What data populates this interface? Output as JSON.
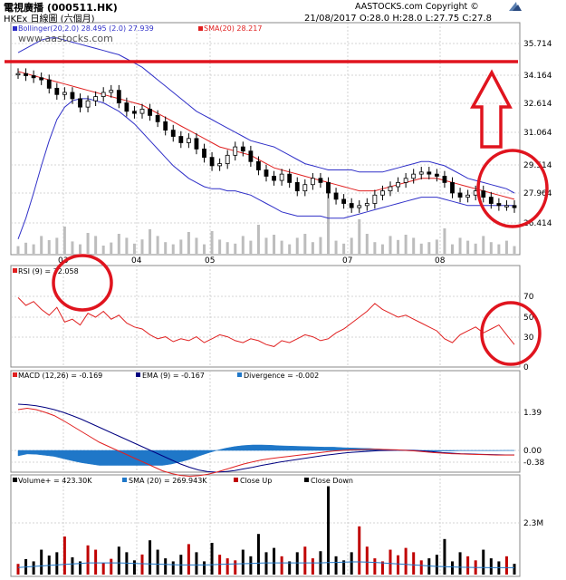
{
  "header": {
    "title": "電視廣播 (000511.HK)",
    "subtitle": "HKEx 日線圖 (六個月)",
    "copyright": "AASTOCKS.com Copyright ©",
    "quote": "21/08/2017  O:28.0  H:28.0  L:27.75  C:27.8",
    "watermark": "www.aastocks.com"
  },
  "colors": {
    "price_candle_up": "#ffffff",
    "price_candle_down": "#000000",
    "bollinger": "#3030c8",
    "sma": "#e02020",
    "rsi": "#e02020",
    "macd": "#e02020",
    "ema": "#000080",
    "divergence": "#1f77c8",
    "volume_up": "#c00000",
    "volume_down": "#000000",
    "volume_sma": "#1f77c8",
    "grid": "#c8c8c8",
    "annotation": "#e0141e"
  },
  "chart_data": [
    {
      "type": "line",
      "panel": "price",
      "legend": [
        "Bollinger(20,2.0) 28.495 (2.0) 27.939",
        "SMA(20) 28.217"
      ],
      "x_tick_labels": [
        "03",
        "04",
        "05",
        "07",
        "08"
      ],
      "y_tick_labels": [
        "35.714",
        "34.164",
        "32.614",
        "31.064",
        "29.514",
        "27.964",
        "26.414"
      ],
      "ylim": [
        25.6,
        36.5
      ],
      "series": [
        {
          "name": "Close",
          "values": [
            34.2,
            34.1,
            34.0,
            33.9,
            33.5,
            33.2,
            33.3,
            33.0,
            32.6,
            32.9,
            33.1,
            33.3,
            33.4,
            32.8,
            32.4,
            32.3,
            32.5,
            32.2,
            31.9,
            31.5,
            31.2,
            30.9,
            31.1,
            30.6,
            30.2,
            29.8,
            29.9,
            30.3,
            30.7,
            30.5,
            30.0,
            29.6,
            29.3,
            29.1,
            29.4,
            29.0,
            28.6,
            28.9,
            29.2,
            29.0,
            28.5,
            28.2,
            28.0,
            27.8,
            27.9,
            28.0,
            28.4,
            28.6,
            28.8,
            29.0,
            29.2,
            29.4,
            29.5,
            29.4,
            29.3,
            29.0,
            28.5,
            28.3,
            28.4,
            28.6,
            28.3,
            28.0,
            27.9,
            27.9,
            27.8
          ]
        },
        {
          "name": "SMA(20)",
          "values": [
            34.3,
            34.2,
            34.1,
            34.0,
            33.9,
            33.8,
            33.7,
            33.6,
            33.5,
            33.4,
            33.3,
            33.2,
            33.1,
            33.0,
            32.9,
            32.8,
            32.7,
            32.5,
            32.3,
            32.1,
            31.9,
            31.7,
            31.5,
            31.3,
            31.1,
            30.9,
            30.7,
            30.6,
            30.5,
            30.4,
            30.3,
            30.1,
            29.9,
            29.7,
            29.6,
            29.5,
            29.4,
            29.3,
            29.2,
            29.1,
            29.0,
            28.9,
            28.8,
            28.7,
            28.6,
            28.6,
            28.6,
            28.7,
            28.8,
            28.9,
            29.0,
            29.1,
            29.2,
            29.2,
            29.2,
            29.1,
            29.0,
            28.9,
            28.8,
            28.7,
            28.6,
            28.5,
            28.4,
            28.3,
            28.2
          ]
        },
        {
          "name": "Bollinger Upper",
          "values": [
            35.2,
            35.4,
            35.6,
            35.8,
            35.9,
            35.9,
            35.8,
            35.7,
            35.6,
            35.5,
            35.4,
            35.3,
            35.2,
            35.1,
            34.9,
            34.7,
            34.5,
            34.2,
            33.9,
            33.6,
            33.3,
            33.0,
            32.7,
            32.4,
            32.2,
            32.0,
            31.8,
            31.6,
            31.4,
            31.2,
            31.0,
            30.9,
            30.8,
            30.7,
            30.5,
            30.3,
            30.1,
            29.9,
            29.8,
            29.7,
            29.6,
            29.6,
            29.6,
            29.6,
            29.5,
            29.5,
            29.5,
            29.5,
            29.6,
            29.7,
            29.8,
            29.9,
            30.0,
            30.0,
            29.9,
            29.8,
            29.6,
            29.4,
            29.2,
            29.1,
            29.0,
            28.9,
            28.8,
            28.7,
            28.5
          ]
        },
        {
          "name": "Bollinger Lower",
          "values": [
            26.3,
            27.3,
            28.5,
            29.8,
            31.0,
            32.0,
            32.6,
            32.9,
            33.0,
            33.0,
            32.9,
            32.8,
            32.6,
            32.4,
            32.1,
            31.8,
            31.4,
            31.0,
            30.6,
            30.2,
            29.8,
            29.5,
            29.2,
            29.0,
            28.8,
            28.7,
            28.7,
            28.6,
            28.6,
            28.5,
            28.4,
            28.2,
            28.0,
            27.8,
            27.6,
            27.5,
            27.4,
            27.4,
            27.4,
            27.4,
            27.3,
            27.3,
            27.3,
            27.4,
            27.5,
            27.6,
            27.7,
            27.8,
            27.9,
            28.0,
            28.1,
            28.2,
            28.3,
            28.3,
            28.3,
            28.2,
            28.1,
            28.0,
            27.9,
            27.9,
            27.9,
            27.9,
            27.9,
            27.9,
            27.9
          ]
        }
      ]
    },
    {
      "type": "line",
      "panel": "rsi",
      "legend": [
        "RSI (9) = 32.058"
      ],
      "y_tick_labels": [
        "70",
        "50",
        "30",
        "0"
      ],
      "ylim": [
        0,
        100
      ],
      "series": [
        {
          "name": "RSI (9)",
          "values": [
            80,
            72,
            76,
            68,
            62,
            70,
            55,
            58,
            52,
            64,
            60,
            66,
            58,
            62,
            54,
            50,
            48,
            42,
            38,
            40,
            35,
            38,
            36,
            40,
            34,
            38,
            42,
            40,
            36,
            34,
            38,
            36,
            32,
            30,
            36,
            34,
            38,
            42,
            40,
            36,
            38,
            44,
            48,
            54,
            60,
            66,
            74,
            68,
            64,
            60,
            62,
            58,
            54,
            50,
            46,
            38,
            34,
            42,
            46,
            50,
            44,
            48,
            52,
            42,
            32
          ]
        }
      ]
    },
    {
      "type": "line",
      "panel": "macd",
      "legend": [
        "MACD (12,26) = -0.169",
        "EMA (9) = -0.167",
        "Divergence = -0.002"
      ],
      "y_tick_labels": [
        "1.39",
        "0.00",
        "-0.38"
      ],
      "ylim": [
        -1.5,
        2.5
      ],
      "series": [
        {
          "name": "MACD (12,26)",
          "values": [
            1.5,
            1.55,
            1.5,
            1.4,
            1.28,
            1.1,
            0.9,
            0.7,
            0.5,
            0.3,
            0.15,
            0.0,
            -0.15,
            -0.3,
            -0.45,
            -0.6,
            -0.75,
            -0.85,
            -0.92,
            -0.95,
            -0.93,
            -0.88,
            -0.8,
            -0.7,
            -0.6,
            -0.5,
            -0.42,
            -0.35,
            -0.3,
            -0.26,
            -0.22,
            -0.18,
            -0.14,
            -0.1,
            -0.06,
            -0.02,
            0.0,
            0.02,
            0.03,
            0.04,
            0.04,
            0.03,
            0.02,
            0.0,
            -0.02,
            -0.05,
            -0.08,
            -0.1,
            -0.12,
            -0.13,
            -0.14,
            -0.15,
            -0.16,
            -0.17,
            -0.17,
            -0.17
          ]
        },
        {
          "name": "EMA (9)",
          "values": [
            1.7,
            1.68,
            1.64,
            1.58,
            1.5,
            1.4,
            1.28,
            1.15,
            1.0,
            0.85,
            0.7,
            0.55,
            0.4,
            0.25,
            0.1,
            -0.05,
            -0.2,
            -0.35,
            -0.5,
            -0.62,
            -0.72,
            -0.78,
            -0.8,
            -0.78,
            -0.74,
            -0.68,
            -0.62,
            -0.55,
            -0.49,
            -0.43,
            -0.38,
            -0.33,
            -0.28,
            -0.23,
            -0.18,
            -0.14,
            -0.1,
            -0.07,
            -0.05,
            -0.03,
            -0.01,
            0.0,
            0.01,
            0.01,
            0.0,
            -0.02,
            -0.05,
            -0.08,
            -0.1,
            -0.12,
            -0.13,
            -0.14,
            -0.15,
            -0.16,
            -0.167,
            -0.167
          ]
        },
        {
          "name": "Divergence",
          "values": [
            -0.2,
            -0.13,
            -0.14,
            -0.18,
            -0.22,
            -0.3,
            -0.38,
            -0.45,
            -0.5,
            -0.55,
            -0.55,
            -0.55,
            -0.55,
            -0.55,
            -0.55,
            -0.55,
            -0.55,
            -0.5,
            -0.42,
            -0.33,
            -0.21,
            -0.1,
            0.0,
            0.08,
            0.14,
            0.18,
            0.2,
            0.2,
            0.19,
            0.17,
            0.16,
            0.15,
            0.14,
            0.13,
            0.12,
            0.12,
            0.1,
            0.09,
            0.08,
            0.07,
            0.05,
            0.03,
            0.01,
            -0.01,
            -0.02,
            -0.03,
            -0.03,
            -0.02,
            -0.02,
            -0.01,
            -0.01,
            -0.01,
            -0.01,
            -0.01,
            -0.003,
            -0.002
          ]
        }
      ]
    },
    {
      "type": "bar",
      "panel": "volume",
      "legend": [
        "Volume+ = 423.30K",
        "SMA (20) = 269.943K",
        "Close Up",
        "Close Down"
      ],
      "y_tick_labels": [
        "2.3M"
      ],
      "ylim": [
        0,
        3500
      ],
      "series": [
        {
          "name": "Volume+",
          "values": [
            420,
            610,
            520,
            980,
            750,
            880,
            1500,
            680,
            520,
            1150,
            980,
            450,
            620,
            1100,
            880,
            560,
            790,
            1350,
            980,
            640,
            520,
            780,
            1200,
            880,
            520,
            1250,
            780,
            640,
            560,
            980,
            720,
            1600,
            880,
            1050,
            720,
            520,
            880,
            1100,
            640,
            920,
            3480,
            720,
            560,
            880,
            1900,
            1100,
            640,
            520,
            980,
            760,
            1050,
            880,
            560,
            640,
            780,
            1400,
            520,
            880,
            720,
            560,
            980,
            640,
            520,
            720,
            423
          ]
        },
        {
          "name": "SMA (20)",
          "values": [
            280,
            300,
            320,
            340,
            360,
            380,
            400,
            420,
            440,
            460,
            460,
            460,
            460,
            460,
            450,
            440,
            430,
            420,
            410,
            400,
            390,
            380,
            380,
            380,
            380,
            390,
            400,
            410,
            420,
            430,
            440,
            450,
            460,
            460,
            460,
            460,
            460,
            460,
            460,
            460,
            470,
            480,
            490,
            500,
            500,
            490,
            480,
            460,
            440,
            420,
            400,
            380,
            360,
            340,
            320,
            310,
            300,
            290,
            285,
            280,
            276,
            273,
            271,
            270,
            270
          ]
        }
      ]
    }
  ]
}
